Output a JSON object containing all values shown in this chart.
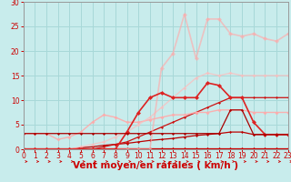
{
  "xlabel": "Vent moyen/en rafales ( km/h )",
  "bg_color": "#c8ecec",
  "grid_color": "#a8d8d8",
  "xlim": [
    0,
    23
  ],
  "ylim": [
    0,
    30
  ],
  "xticks": [
    0,
    1,
    2,
    3,
    4,
    5,
    6,
    7,
    8,
    9,
    10,
    11,
    12,
    13,
    14,
    15,
    16,
    17,
    18,
    19,
    20,
    21,
    22,
    23
  ],
  "yticks": [
    0,
    5,
    10,
    15,
    20,
    25,
    30
  ],
  "series": [
    {
      "x": [
        0,
        1,
        2,
        3,
        4,
        5,
        6,
        7,
        8,
        9,
        10,
        11,
        12,
        13,
        14,
        15,
        16,
        17,
        18,
        19,
        20,
        21,
        22,
        23
      ],
      "y": [
        0.2,
        0.2,
        0.2,
        0.2,
        0.2,
        0.2,
        0.2,
        0.2,
        0.2,
        0.2,
        0.2,
        0.2,
        0.2,
        0.2,
        0.2,
        0.2,
        0.2,
        0.2,
        0.2,
        0.2,
        0.2,
        0.2,
        0.2,
        0.2
      ],
      "color": "#cc0000",
      "marker": "D",
      "markersize": 1.5,
      "linewidth": 0.9,
      "alpha": 1.0
    },
    {
      "x": [
        0,
        1,
        2,
        3,
        4,
        5,
        6,
        7,
        8,
        9,
        10,
        11,
        12,
        13,
        14,
        15,
        16,
        17,
        18,
        19,
        20,
        21,
        22,
        23
      ],
      "y": [
        0,
        0,
        0,
        0,
        0,
        0.3,
        0.5,
        0.8,
        1.0,
        1.2,
        1.5,
        1.8,
        2.0,
        2.2,
        2.5,
        2.8,
        3.0,
        3.2,
        3.5,
        3.5,
        3.0,
        3.0,
        3.0,
        3.0
      ],
      "color": "#bb0000",
      "marker": "D",
      "markersize": 1.5,
      "linewidth": 0.9,
      "alpha": 1.0
    },
    {
      "x": [
        0,
        1,
        2,
        3,
        4,
        5,
        6,
        7,
        8,
        9,
        10,
        11,
        12,
        13,
        14,
        15,
        16,
        17,
        18,
        19,
        20,
        21,
        22,
        23
      ],
      "y": [
        0,
        0,
        0,
        0,
        0,
        0,
        0,
        0.5,
        1.0,
        1.5,
        2.5,
        3.5,
        4.5,
        5.5,
        6.5,
        7.5,
        8.5,
        9.5,
        10.5,
        10.5,
        10.5,
        10.5,
        10.5,
        10.5
      ],
      "color": "#cc1111",
      "marker": "D",
      "markersize": 1.5,
      "linewidth": 0.9,
      "alpha": 1.0
    },
    {
      "x": [
        0,
        1,
        2,
        3,
        4,
        5,
        6,
        7,
        8,
        9,
        10,
        11,
        12,
        13,
        14,
        15,
        16,
        17,
        18,
        19,
        20,
        21,
        22,
        23
      ],
      "y": [
        3.2,
        3.2,
        3.2,
        2.0,
        2.5,
        3.5,
        5.5,
        7.0,
        6.5,
        5.5,
        5.5,
        6.0,
        6.5,
        7.0,
        7.0,
        7.5,
        7.5,
        8.0,
        8.0,
        8.0,
        7.5,
        7.5,
        7.5,
        7.5
      ],
      "color": "#ffaaaa",
      "marker": "D",
      "markersize": 2,
      "linewidth": 1.0,
      "alpha": 0.9
    },
    {
      "x": [
        0,
        1,
        2,
        3,
        4,
        5,
        6,
        7,
        8,
        9,
        10,
        11,
        12,
        13,
        14,
        15,
        16,
        17,
        18,
        19,
        20,
        21,
        22,
        23
      ],
      "y": [
        0,
        0,
        0,
        0,
        0,
        0.5,
        1.0,
        1.5,
        2.5,
        3.5,
        5.0,
        6.5,
        8.5,
        10.5,
        12.5,
        14.5,
        15.5,
        15.0,
        15.5,
        15.0,
        15.0,
        15.0,
        15.0,
        15.0
      ],
      "color": "#ffbbbb",
      "marker": "D",
      "markersize": 2,
      "linewidth": 1.0,
      "alpha": 0.7
    },
    {
      "x": [
        0,
        1,
        2,
        3,
        4,
        5,
        6,
        7,
        8,
        9,
        10,
        11,
        12,
        13,
        14,
        15,
        16,
        17,
        18,
        19,
        20,
        21,
        22,
        23
      ],
      "y": [
        0,
        0,
        0,
        0,
        0,
        0,
        0,
        0,
        0,
        0,
        0,
        0,
        16.5,
        19.5,
        27.5,
        18.5,
        26.5,
        26.5,
        23.5,
        23.0,
        23.5,
        22.5,
        22.0,
        23.5
      ],
      "color": "#ffaaaa",
      "marker": "D",
      "markersize": 2.5,
      "linewidth": 1.2,
      "alpha": 0.65
    },
    {
      "x": [
        0,
        1,
        2,
        3,
        4,
        5,
        6,
        7,
        8,
        9,
        10,
        11,
        12,
        13,
        14,
        15,
        16,
        17,
        18,
        19,
        20,
        21,
        22,
        23
      ],
      "y": [
        0,
        0,
        0,
        0,
        0,
        0,
        0,
        0,
        0,
        3.5,
        7.5,
        10.5,
        11.5,
        10.5,
        10.5,
        10.5,
        13.5,
        13.0,
        10.5,
        10.5,
        5.5,
        3.0,
        3.0,
        3.0
      ],
      "color": "#dd2222",
      "marker": "D",
      "markersize": 2.5,
      "linewidth": 1.2,
      "alpha": 1.0
    },
    {
      "x": [
        0,
        1,
        2,
        3,
        4,
        5,
        6,
        7,
        8,
        9,
        10,
        11,
        12,
        13,
        14,
        15,
        16,
        17,
        18,
        19,
        20,
        21,
        22,
        23
      ],
      "y": [
        3.2,
        3.2,
        3.2,
        3.2,
        3.2,
        3.2,
        3.2,
        3.2,
        3.2,
        3.2,
        3.2,
        3.2,
        3.2,
        3.2,
        3.2,
        3.2,
        3.2,
        3.2,
        8.0,
        8.0,
        3.0,
        3.0,
        3.0,
        3.0
      ],
      "color": "#aa0000",
      "marker": "D",
      "markersize": 1.5,
      "linewidth": 0.9,
      "alpha": 1.0
    }
  ],
  "xlabel_color": "#cc0000",
  "tick_color": "#cc0000",
  "xlabel_fontsize": 7.5,
  "tick_fontsize": 5.5
}
